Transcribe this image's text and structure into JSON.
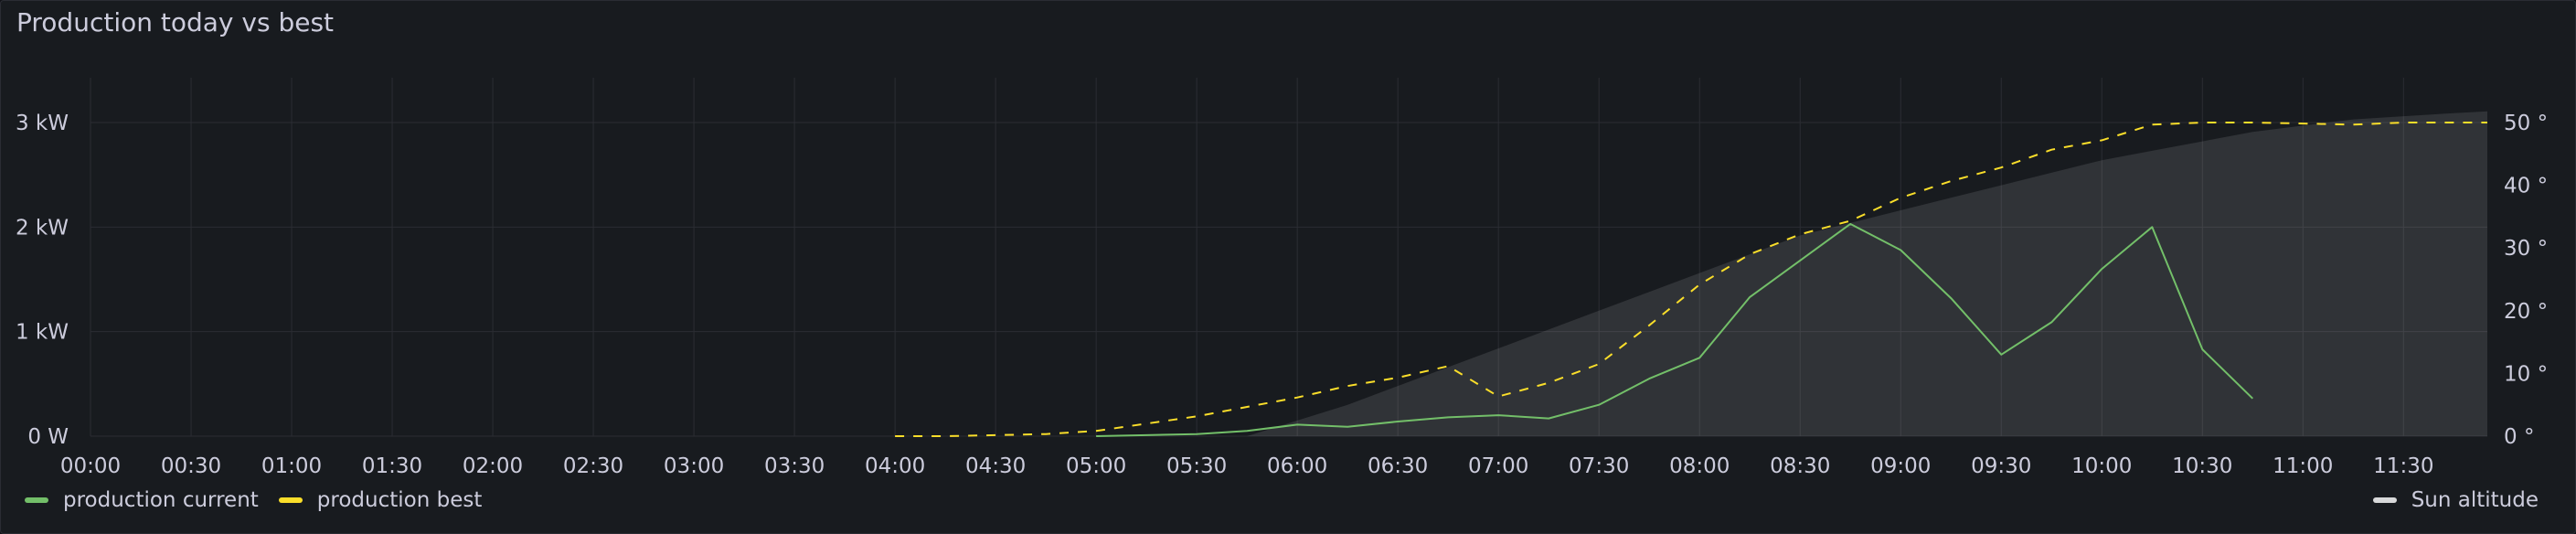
{
  "panel": {
    "title": "Production today vs best"
  },
  "chart_data": {
    "type": "line",
    "x_labels": [
      "00:00",
      "00:30",
      "01:00",
      "01:30",
      "02:00",
      "02:30",
      "03:00",
      "03:30",
      "04:00",
      "04:30",
      "05:00",
      "05:30",
      "06:00",
      "06:30",
      "07:00",
      "07:30",
      "08:00",
      "08:30",
      "09:00",
      "09:30",
      "10:00",
      "10:30",
      "11:00",
      "11:30"
    ],
    "x_range": [
      "00:00",
      "11:55"
    ],
    "y_left": {
      "unit": "kW",
      "ticks": [
        "0 W",
        "1 kW",
        "2 kW",
        "3 kW"
      ],
      "range": [
        0,
        3
      ]
    },
    "y_right": {
      "unit": "°",
      "ticks": [
        "0 °",
        "10 °",
        "20 °",
        "30 °",
        "40 °",
        "50 °"
      ],
      "range": [
        0,
        50
      ]
    },
    "grid": true,
    "series": [
      {
        "name": "production current",
        "color": "#73bf69",
        "style": "solid",
        "axis": "left",
        "points": [
          [
            "05:00",
            0.0
          ],
          [
            "05:15",
            0.01
          ],
          [
            "05:30",
            0.02
          ],
          [
            "05:45",
            0.05
          ],
          [
            "06:00",
            0.11
          ],
          [
            "06:15",
            0.09
          ],
          [
            "06:30",
            0.14
          ],
          [
            "06:45",
            0.18
          ],
          [
            "07:00",
            0.2
          ],
          [
            "07:15",
            0.17
          ],
          [
            "07:30",
            0.3
          ],
          [
            "07:45",
            0.55
          ],
          [
            "08:00",
            0.75
          ],
          [
            "08:15",
            1.33
          ],
          [
            "08:30",
            1.68
          ],
          [
            "08:45",
            2.03
          ],
          [
            "09:00",
            1.78
          ],
          [
            "09:15",
            1.32
          ],
          [
            "09:30",
            0.78
          ],
          [
            "09:45",
            1.09
          ],
          [
            "10:00",
            1.6
          ],
          [
            "10:15",
            2.0
          ],
          [
            "10:30",
            0.83
          ],
          [
            "10:45",
            0.36
          ]
        ]
      },
      {
        "name": "production best",
        "color": "#fade2a",
        "style": "dashed",
        "axis": "left",
        "points": [
          [
            "04:00",
            0.0
          ],
          [
            "04:15",
            0.0
          ],
          [
            "04:30",
            0.01
          ],
          [
            "04:45",
            0.02
          ],
          [
            "05:00",
            0.05
          ],
          [
            "05:15",
            0.12
          ],
          [
            "05:30",
            0.19
          ],
          [
            "05:45",
            0.28
          ],
          [
            "06:00",
            0.37
          ],
          [
            "06:15",
            0.48
          ],
          [
            "06:30",
            0.56
          ],
          [
            "06:45",
            0.67
          ],
          [
            "07:00",
            0.38
          ],
          [
            "07:15",
            0.51
          ],
          [
            "07:30",
            0.69
          ],
          [
            "07:45",
            1.06
          ],
          [
            "08:00",
            1.45
          ],
          [
            "08:15",
            1.74
          ],
          [
            "08:30",
            1.93
          ],
          [
            "08:45",
            2.06
          ],
          [
            "09:00",
            2.28
          ],
          [
            "09:15",
            2.44
          ],
          [
            "09:30",
            2.57
          ],
          [
            "09:45",
            2.74
          ],
          [
            "10:00",
            2.83
          ],
          [
            "10:15",
            2.98
          ],
          [
            "10:30",
            3.0
          ],
          [
            "10:45",
            3.0
          ],
          [
            "11:00",
            2.99
          ],
          [
            "11:15",
            2.98
          ],
          [
            "11:30",
            3.0
          ],
          [
            "11:45",
            3.0
          ],
          [
            "11:55",
            3.0
          ]
        ]
      },
      {
        "name": "Sun altitude",
        "color": "#d8d9da",
        "style": "area",
        "axis": "right",
        "points": [
          [
            "05:45",
            0
          ],
          [
            "06:00",
            2.5
          ],
          [
            "06:15",
            5
          ],
          [
            "06:30",
            8
          ],
          [
            "06:45",
            11
          ],
          [
            "07:00",
            14
          ],
          [
            "07:15",
            17
          ],
          [
            "07:30",
            20
          ],
          [
            "07:45",
            23
          ],
          [
            "08:00",
            26
          ],
          [
            "08:15",
            29
          ],
          [
            "08:30",
            32
          ],
          [
            "08:45",
            34
          ],
          [
            "09:00",
            36
          ],
          [
            "09:15",
            38
          ],
          [
            "09:30",
            40
          ],
          [
            "09:45",
            42
          ],
          [
            "10:00",
            44
          ],
          [
            "10:15",
            45.5
          ],
          [
            "10:30",
            47
          ],
          [
            "10:45",
            48.5
          ],
          [
            "11:00",
            49.5
          ],
          [
            "11:15",
            50.5
          ],
          [
            "11:30",
            51
          ],
          [
            "11:45",
            51.5
          ],
          [
            "11:55",
            51.8
          ]
        ]
      }
    ],
    "legend": {
      "placement": "bottom",
      "left": [
        "production current",
        "production best"
      ],
      "right": [
        "Sun altitude"
      ]
    }
  }
}
